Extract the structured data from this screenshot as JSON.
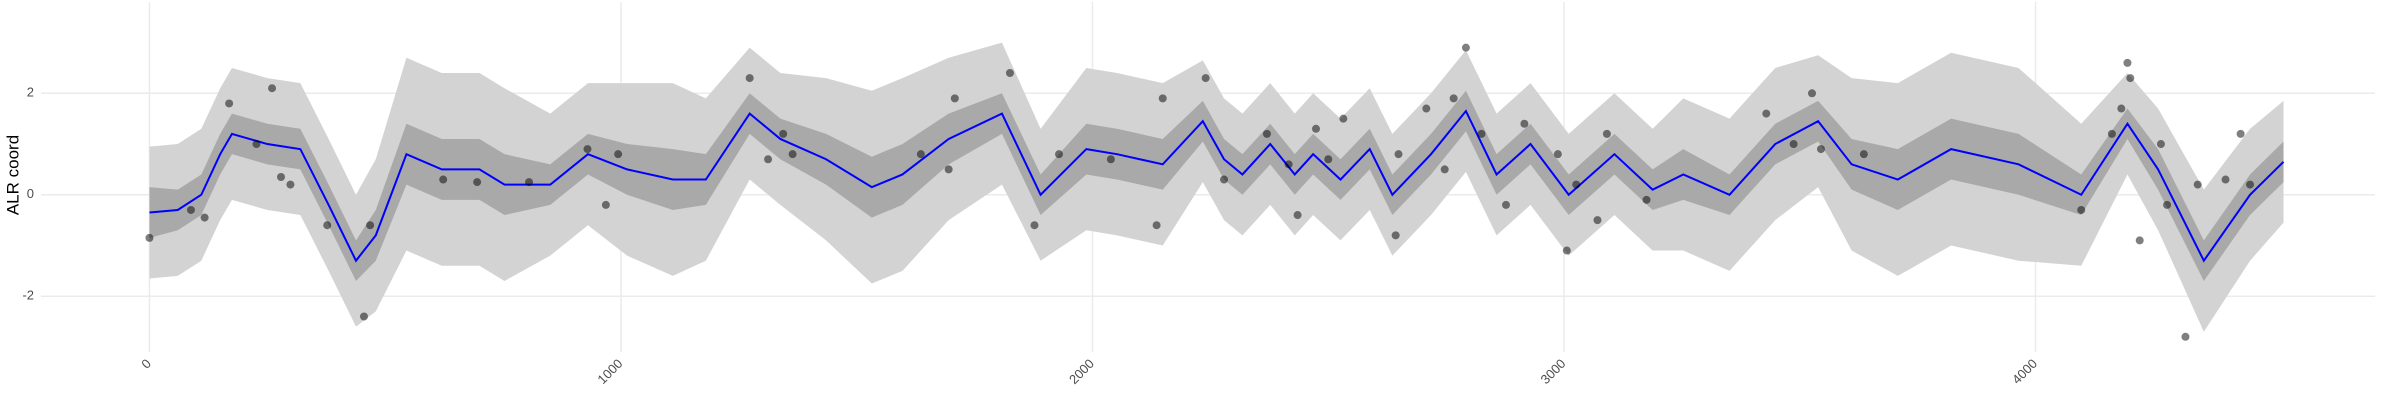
{
  "chart_data": {
    "type": "line",
    "ylabel": "ALR coord",
    "xlim": [
      -230,
      4720
    ],
    "ylim": [
      -3.1,
      3.8
    ],
    "xticks": [
      0,
      1000,
      2000,
      3000,
      4000
    ],
    "yticks": [
      -2,
      0,
      2
    ],
    "grid": true,
    "x": [
      0,
      60,
      110,
      150,
      175,
      250,
      320,
      380,
      438,
      480,
      545,
      620,
      700,
      753,
      850,
      930,
      1013,
      1110,
      1180,
      1273,
      1338,
      1435,
      1532,
      1597,
      1695,
      1808,
      1890,
      1987,
      2052,
      2149,
      2234,
      2279,
      2318,
      2377,
      2429,
      2468,
      2526,
      2588,
      2636,
      2718,
      2792,
      2857,
      2929,
      3010,
      3107,
      3188,
      3253,
      3351,
      3448,
      3539,
      3610,
      3708,
      3821,
      3964,
      4097,
      4195,
      4260,
      4357,
      4455,
      4526
    ],
    "bands": [
      {
        "color": "#d3d3d3",
        "lower": [
          -1.65,
          -1.6,
          -1.3,
          -0.5,
          -0.1,
          -0.3,
          -0.4,
          -1.5,
          -2.6,
          -2.3,
          -1.1,
          -1.4,
          -1.4,
          -1.7,
          -1.2,
          -0.6,
          -1.2,
          -1.6,
          -1.3,
          0.3,
          -0.2,
          -0.9,
          -1.75,
          -1.5,
          -0.5,
          0.2,
          -1.3,
          -0.7,
          -0.8,
          -1.0,
          0.25,
          -0.5,
          -0.8,
          -0.2,
          -0.8,
          -0.4,
          -0.9,
          -0.3,
          -1.2,
          -0.4,
          0.45,
          -0.8,
          -0.2,
          -1.2,
          -0.4,
          -1.1,
          -1.1,
          -1.5,
          -0.5,
          0.15,
          -1.1,
          -1.6,
          -1.0,
          -1.3,
          -1.4,
          0.4,
          -0.7,
          -2.7,
          -1.3,
          -0.55
        ],
        "upper": [
          0.95,
          1.0,
          1.3,
          2.1,
          2.5,
          2.3,
          2.2,
          1.1,
          0.0,
          0.7,
          2.7,
          2.4,
          2.4,
          2.1,
          1.6,
          2.2,
          2.2,
          2.2,
          1.9,
          2.9,
          2.4,
          2.3,
          2.05,
          2.3,
          2.7,
          3.0,
          1.3,
          2.5,
          2.4,
          2.2,
          2.65,
          1.9,
          1.6,
          2.2,
          1.6,
          2.0,
          1.5,
          2.1,
          1.2,
          2.0,
          2.85,
          1.6,
          2.2,
          1.2,
          2.0,
          1.3,
          1.9,
          1.5,
          2.5,
          2.75,
          2.3,
          2.2,
          2.8,
          2.5,
          1.4,
          2.4,
          1.7,
          0.1,
          1.3,
          1.85
        ]
      },
      {
        "color": "#a9a9a9",
        "lower": [
          -0.85,
          -0.7,
          -0.4,
          0.4,
          0.8,
          0.6,
          0.5,
          -0.6,
          -1.7,
          -1.3,
          0.2,
          -0.1,
          -0.1,
          -0.4,
          -0.2,
          0.4,
          0.0,
          -0.3,
          -0.2,
          1.2,
          0.7,
          0.2,
          -0.45,
          -0.2,
          0.6,
          1.2,
          -0.4,
          0.4,
          0.3,
          0.1,
          1.05,
          0.3,
          0.0,
          0.6,
          0.0,
          0.4,
          -0.1,
          0.5,
          -0.4,
          0.4,
          1.25,
          0.0,
          0.6,
          -0.4,
          0.4,
          -0.3,
          -0.1,
          -0.4,
          0.6,
          1.05,
          0.1,
          -0.3,
          0.3,
          0.0,
          -0.4,
          1.1,
          0.1,
          -1.7,
          -0.4,
          0.25
        ],
        "upper": [
          0.15,
          0.1,
          0.4,
          1.2,
          1.6,
          1.4,
          1.3,
          0.2,
          -0.9,
          -0.3,
          1.4,
          1.1,
          1.1,
          0.8,
          0.6,
          1.2,
          1.0,
          0.9,
          0.8,
          2.0,
          1.5,
          1.2,
          0.75,
          1.0,
          1.6,
          2.0,
          0.4,
          1.4,
          1.3,
          1.1,
          1.85,
          1.1,
          0.8,
          1.4,
          0.8,
          1.2,
          0.7,
          1.3,
          0.4,
          1.2,
          2.05,
          0.8,
          1.4,
          0.4,
          1.2,
          0.5,
          0.9,
          0.4,
          1.4,
          1.85,
          1.1,
          0.9,
          1.5,
          1.2,
          0.4,
          1.7,
          0.9,
          -0.9,
          0.4,
          1.05
        ]
      }
    ],
    "series": [
      {
        "color": "#0000ff",
        "values": [
          -0.35,
          -0.3,
          0.0,
          0.8,
          1.2,
          1.0,
          0.9,
          -0.2,
          -1.3,
          -0.8,
          0.8,
          0.5,
          0.5,
          0.2,
          0.2,
          0.8,
          0.5,
          0.3,
          0.3,
          1.6,
          1.1,
          0.7,
          0.15,
          0.4,
          1.1,
          1.6,
          0.0,
          0.9,
          0.8,
          0.6,
          1.45,
          0.7,
          0.4,
          1.0,
          0.4,
          0.8,
          0.3,
          0.9,
          0.0,
          0.8,
          1.65,
          0.4,
          1.0,
          0.0,
          0.8,
          0.1,
          0.4,
          0.0,
          1.0,
          1.45,
          0.6,
          0.3,
          0.9,
          0.6,
          0.0,
          1.4,
          0.5,
          -1.3,
          0.0,
          0.65
        ]
      }
    ],
    "points": {
      "color": "#000000",
      "x": [
        0,
        88,
        117,
        169,
        227,
        260,
        279,
        299,
        377,
        455,
        468,
        623,
        695,
        805,
        929,
        968,
        994,
        1273,
        1312,
        1344,
        1364,
        1636,
        1695,
        1708,
        1825,
        1877,
        1929,
        2039,
        2136,
        2149,
        2240,
        2279,
        2370,
        2416,
        2435,
        2474,
        2500,
        2532,
        2643,
        2649,
        2708,
        2747,
        2766,
        2792,
        2825,
        2877,
        2916,
        2987,
        3006,
        3026,
        3071,
        3091,
        3175,
        3429,
        3487,
        3526,
        3545,
        3636,
        4097,
        4162,
        4182,
        4195,
        4201,
        4221,
        4266,
        4279,
        4318,
        4344,
        4403,
        4435,
        4455
      ],
      "y": [
        -0.85,
        -0.3,
        -0.45,
        1.8,
        1.0,
        2.1,
        0.35,
        0.2,
        -0.6,
        -2.4,
        -0.6,
        0.3,
        0.25,
        0.25,
        0.9,
        -0.2,
        0.8,
        2.3,
        0.7,
        1.2,
        0.8,
        0.8,
        0.5,
        1.9,
        2.4,
        -0.6,
        0.8,
        0.7,
        -0.6,
        1.9,
        2.3,
        0.3,
        1.2,
        0.6,
        -0.4,
        1.3,
        0.7,
        1.5,
        -0.8,
        0.8,
        1.7,
        0.5,
        1.9,
        2.9,
        1.2,
        -0.2,
        1.4,
        0.8,
        -1.1,
        0.2,
        -0.5,
        1.2,
        -0.1,
        1.6,
        1.0,
        2.0,
        0.9,
        0.8,
        -0.3,
        1.2,
        1.7,
        2.6,
        2.3,
        -0.9,
        1.0,
        -0.2,
        -2.8,
        0.2,
        0.3,
        1.2,
        0.2
      ]
    }
  }
}
